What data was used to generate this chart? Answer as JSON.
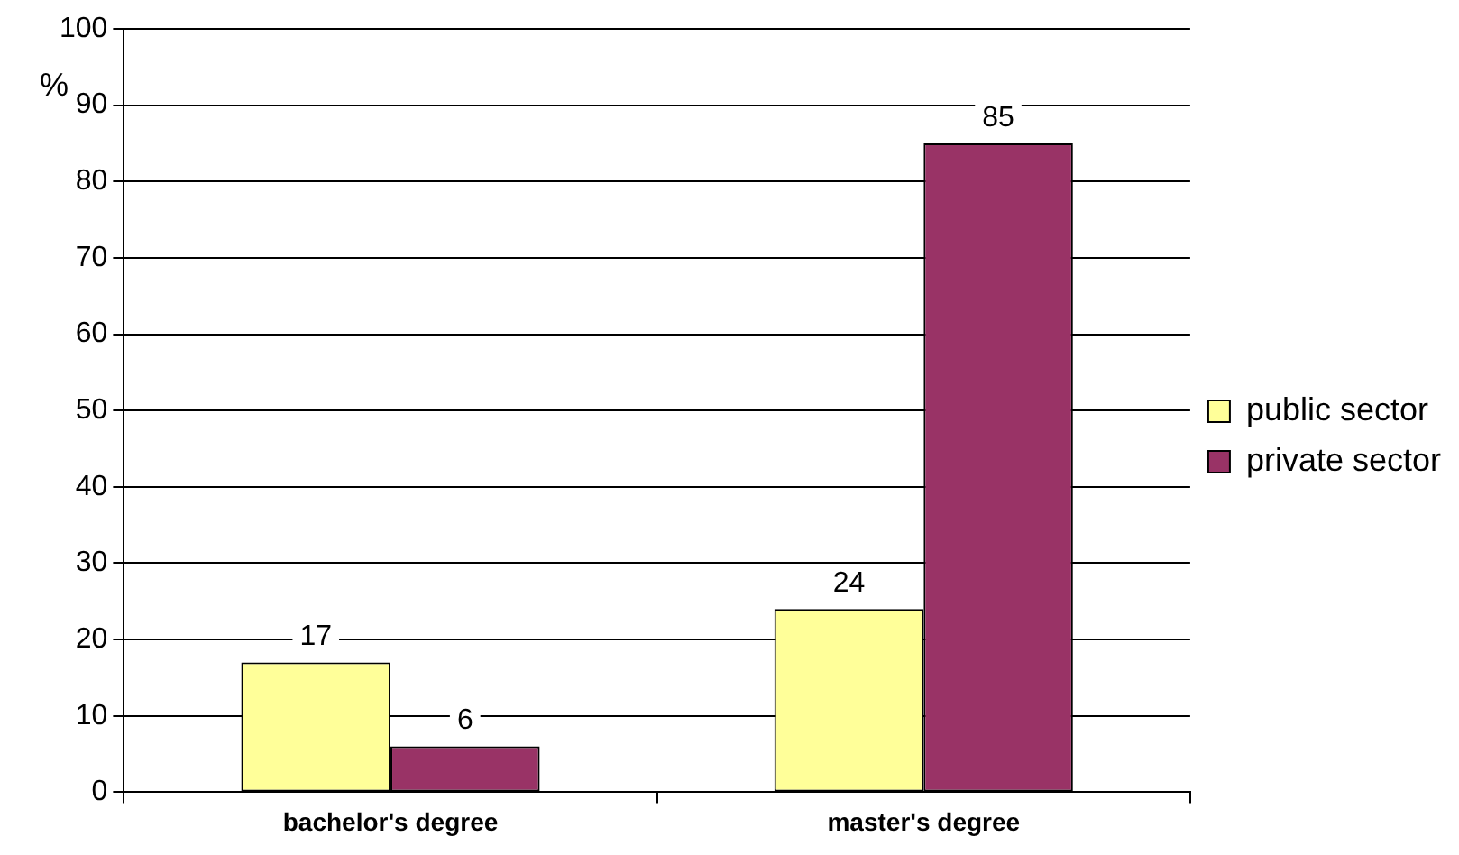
{
  "chart_data": {
    "type": "bar",
    "ylabel": "%",
    "categories": [
      "bachelor's degree",
      "master's degree"
    ],
    "series": [
      {
        "name": "public sector",
        "color": "#ffff99",
        "values": [
          17,
          24
        ]
      },
      {
        "name": "private sector",
        "color": "#993366",
        "values": [
          6,
          85
        ]
      }
    ],
    "ylim": [
      0,
      100
    ],
    "yticks": [
      0,
      10,
      20,
      30,
      40,
      50,
      60,
      70,
      80,
      90,
      100
    ],
    "grid": "y",
    "legend": "right",
    "data_labels": true
  }
}
